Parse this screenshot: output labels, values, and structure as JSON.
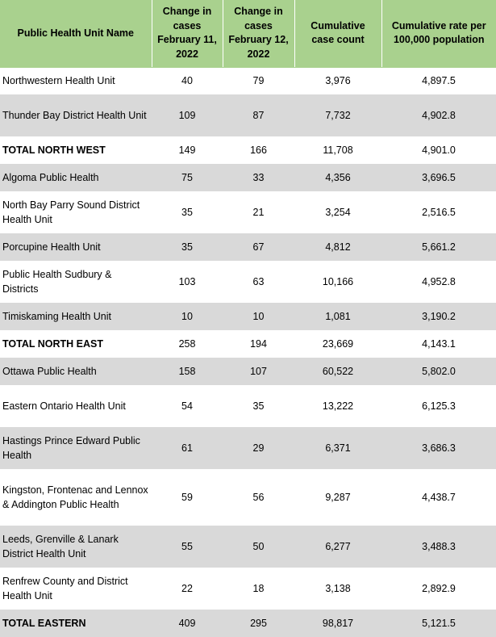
{
  "table": {
    "headers": [
      "Public Health Unit Name",
      "Change in cases February 11, 2022",
      "Change in cases February 12, 2022",
      "Cumulative case count",
      "Cumulative rate per 100,000 population"
    ],
    "rows": [
      [
        "Northwestern Health Unit",
        "40",
        "79",
        "3,976",
        "4,897.5"
      ],
      [
        "Thunder Bay District Health Unit",
        "109",
        "87",
        "7,732",
        "4,902.8"
      ],
      [
        "TOTAL NORTH WEST",
        "149",
        "166",
        "11,708",
        "4,901.0"
      ],
      [
        "Algoma Public Health",
        "75",
        "33",
        "4,356",
        "3,696.5"
      ],
      [
        "North Bay Parry Sound District Health Unit",
        "35",
        "21",
        "3,254",
        "2,516.5"
      ],
      [
        "Porcupine Health Unit",
        "35",
        "67",
        "4,812",
        "5,661.2"
      ],
      [
        "Public Health Sudbury & Districts",
        "103",
        "63",
        "10,166",
        "4,952.8"
      ],
      [
        "Timiskaming Health Unit",
        "10",
        "10",
        "1,081",
        "3,190.2"
      ],
      [
        "TOTAL NORTH EAST",
        "258",
        "194",
        "23,669",
        "4,143.1"
      ],
      [
        "Ottawa Public Health",
        "158",
        "107",
        "60,522",
        "5,802.0"
      ],
      [
        "Eastern Ontario Health Unit",
        "54",
        "35",
        "13,222",
        "6,125.3"
      ],
      [
        "Hastings Prince Edward Public Health",
        "61",
        "29",
        "6,371",
        "3,686.3"
      ],
      [
        "Kingston, Frontenac and Lennox & Addington Public Health",
        "59",
        "56",
        "9,287",
        "4,438.7"
      ],
      [
        "Leeds, Grenville & Lanark District Health Unit",
        "55",
        "50",
        "6,277",
        "3,488.3"
      ],
      [
        "Renfrew County and District Health Unit",
        "22",
        "18",
        "3,138",
        "2,892.9"
      ],
      [
        "TOTAL EASTERN",
        "409",
        "295",
        "98,817",
        "5,121.5"
      ]
    ]
  },
  "colors": {
    "header_background": "#a9d18e",
    "shaded_row": "#d9d9d9"
  }
}
